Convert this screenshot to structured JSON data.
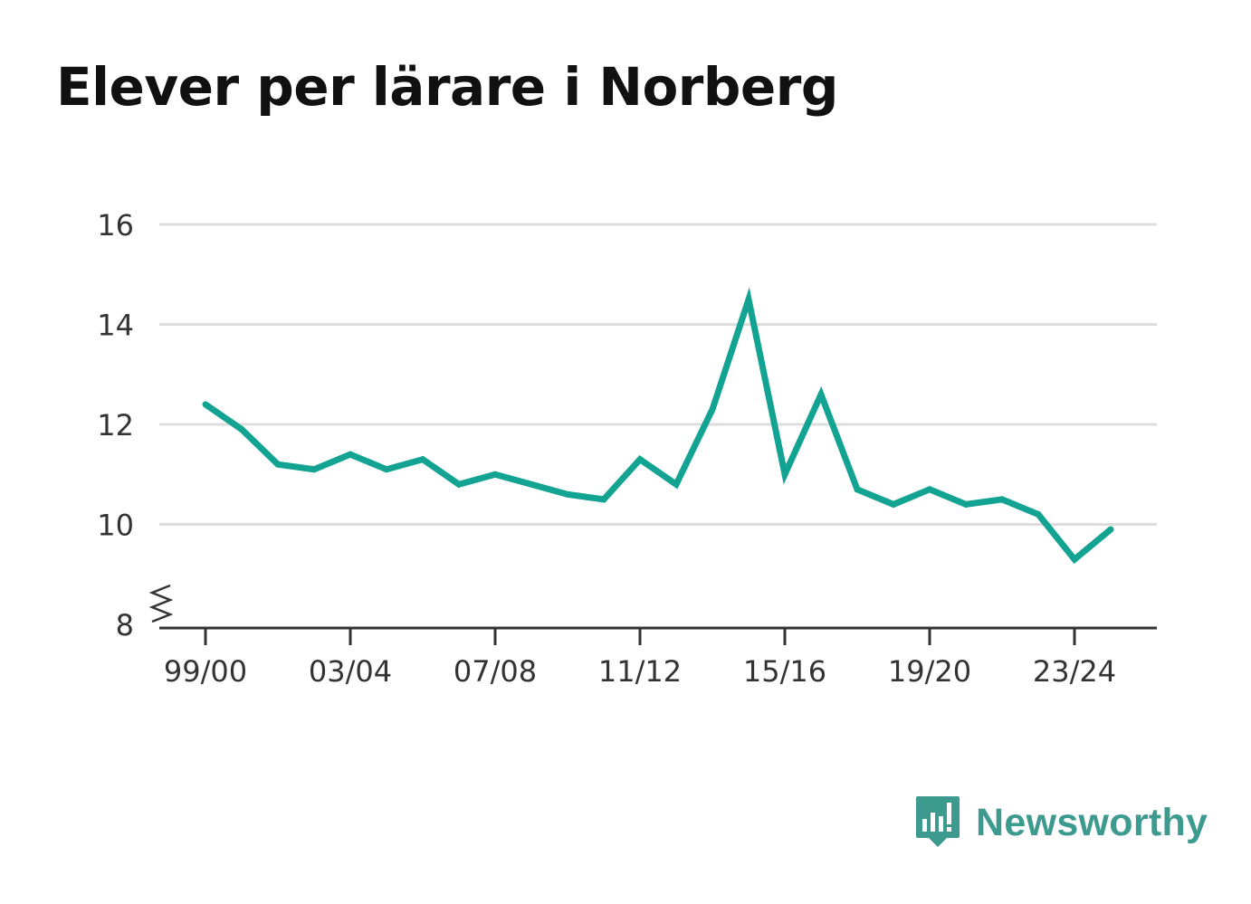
{
  "title": "Elever per lärare i Norberg",
  "brand": {
    "name": "Newsworthy",
    "icon": "bar-chart-speech-bubble-icon",
    "color": "#3d9a8f"
  },
  "colors": {
    "line": "#12a392",
    "grid": "#dddddd",
    "axis": "#333333"
  },
  "chart_data": {
    "type": "line",
    "title": "Elever per lärare i Norberg",
    "xlabel": "",
    "ylabel": "",
    "ylim": [
      8,
      16
    ],
    "y_ticks": [
      8,
      10,
      12,
      14,
      16
    ],
    "y_axis_broken": true,
    "grid": "horizontal",
    "legend": "none",
    "x_tick_labels": [
      "99/00",
      "03/04",
      "07/08",
      "11/12",
      "15/16",
      "19/20",
      "23/24"
    ],
    "categories": [
      "99/00",
      "00/01",
      "01/02",
      "02/03",
      "03/04",
      "04/05",
      "05/06",
      "06/07",
      "07/08",
      "08/09",
      "09/10",
      "10/11",
      "11/12",
      "12/13",
      "13/14",
      "14/15",
      "15/16",
      "16/17",
      "17/18",
      "18/19",
      "19/20",
      "20/21",
      "21/22",
      "22/23",
      "23/24",
      "24/25"
    ],
    "series": [
      {
        "values": [
          12.4,
          11.9,
          11.2,
          11.1,
          11.4,
          11.1,
          11.3,
          10.8,
          11.0,
          10.8,
          10.6,
          10.5,
          11.3,
          10.8,
          12.3,
          14.5,
          11.0,
          12.6,
          10.7,
          10.4,
          10.7,
          10.4,
          10.5,
          10.2,
          9.3,
          9.9
        ]
      }
    ]
  }
}
